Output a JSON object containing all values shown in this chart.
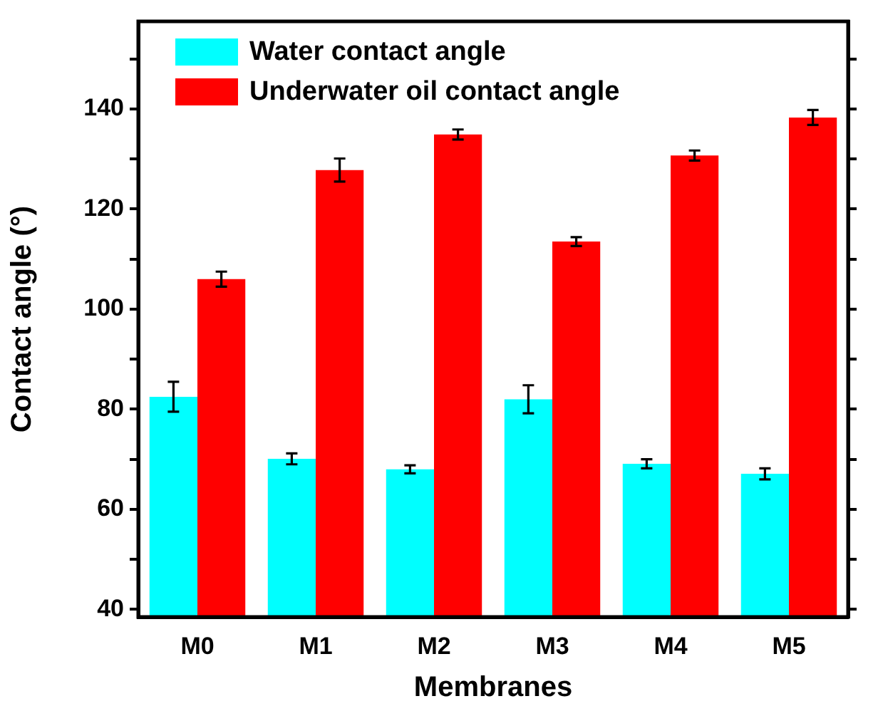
{
  "chart_data": {
    "type": "bar",
    "xlabel": "Membranes",
    "ylabel": "Contact angle (°)",
    "categories": [
      "M0",
      "M1",
      "M2",
      "M3",
      "M4",
      "M5"
    ],
    "series": [
      {
        "name": "Water contact angle",
        "color": "#00ffff",
        "values": [
          82.5,
          70.1,
          68,
          82,
          69.1,
          67.1
        ],
        "errors": [
          3,
          1.1,
          0.8,
          2.8,
          0.9,
          1.1
        ]
      },
      {
        "name": "Underwater oil contact angle",
        "color": "#ff0000",
        "values": [
          106,
          127.8,
          134.9,
          113.5,
          130.7,
          138.3
        ],
        "errors": [
          1.5,
          2.3,
          1,
          0.9,
          1,
          1.5
        ]
      }
    ],
    "ylim": [
      38.5,
      157.5
    ],
    "yticks": [
      40,
      {
        "value": 50,
        "label": null
      },
      60,
      {
        "value": 70,
        "label": null
      },
      80,
      {
        "value": 90,
        "label": null
      },
      100,
      {
        "value": 110,
        "label": null
      },
      120,
      {
        "value": 130,
        "label": null
      },
      140,
      {
        "value": 150,
        "label": null
      }
    ],
    "legend": "top left",
    "grid": false
  }
}
